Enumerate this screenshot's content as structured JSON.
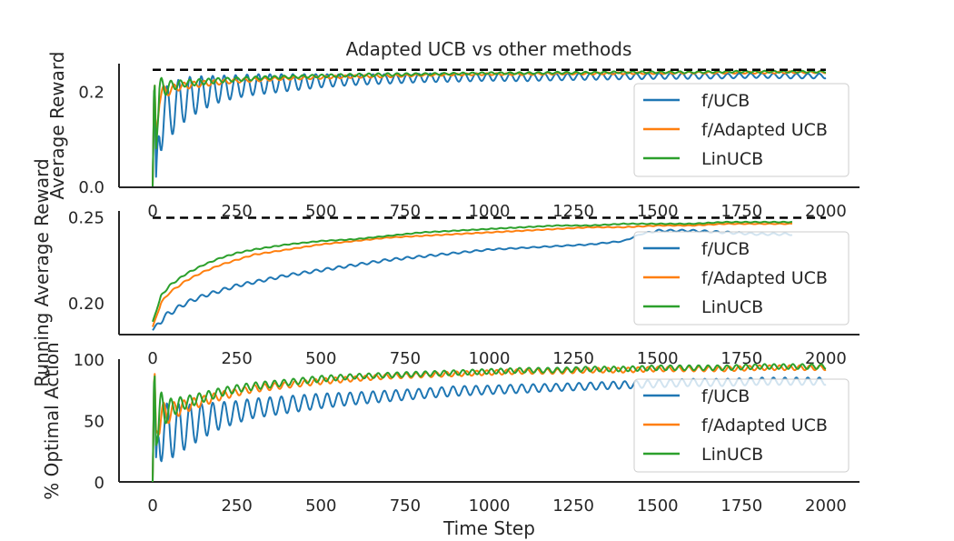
{
  "figure_title": "Adapted UCB vs other methods",
  "colors": {
    "f_ucb": "#1f77b4",
    "f_adapted_ucb": "#ff7f0e",
    "linucb": "#2ca02c",
    "reference_line": "#000000",
    "axis": "#262626",
    "legend_border": "#cccccc"
  },
  "chart_data": [
    {
      "type": "line",
      "title": "Adapted UCB vs other methods",
      "ylabel": "Average Reward",
      "xlabel": "",
      "xlim": [
        -100,
        2100
      ],
      "ylim": [
        -0.002,
        0.258
      ],
      "grid": false,
      "legend_position": "right",
      "x_ticks": [
        0,
        250,
        500,
        750,
        1000,
        1250,
        1500,
        1750,
        2000
      ],
      "x_tick_labels": [
        "0",
        "250",
        "500",
        "750",
        "1000",
        "1250",
        "1500",
        "1750",
        "2000"
      ],
      "y_ticks": [
        0.0,
        0.2
      ],
      "y_tick_labels": [
        "0.0",
        "0.2"
      ],
      "reference_line": {
        "value": 0.245,
        "style": "dashed",
        "x_range": [
          0,
          2000
        ]
      },
      "series": [
        {
          "name": "f/UCB",
          "color_key": "f_ucb",
          "x": [
            0,
            5,
            10,
            20,
            40,
            60,
            80,
            100,
            150,
            200,
            250,
            300,
            400,
            500,
            600,
            700,
            800,
            900,
            1000,
            1100,
            1200,
            1300,
            1400,
            1500,
            1600,
            1700,
            1800,
            1900,
            2000
          ],
          "y": [
            0.0,
            0.25,
            0.02,
            0.14,
            0.15,
            0.165,
            0.175,
            0.185,
            0.197,
            0.205,
            0.21,
            0.214,
            0.218,
            0.222,
            0.224,
            0.226,
            0.228,
            0.229,
            0.23,
            0.229,
            0.23,
            0.231,
            0.231,
            0.232,
            0.232,
            0.232,
            0.233,
            0.232,
            0.232
          ],
          "oscillation_amplitude": [
            0,
            0,
            0,
            0.07,
            0.06,
            0.055,
            0.05,
            0.045,
            0.035,
            0.028,
            0.024,
            0.022,
            0.018,
            0.014,
            0.011,
            0.01,
            0.009,
            0.009,
            0.008,
            0.008,
            0.007,
            0.007,
            0.006,
            0.006,
            0.006,
            0.005,
            0.005,
            0.005,
            0.005
          ],
          "oscillation_period": 34
        },
        {
          "name": "f/Adapted UCB",
          "color_key": "f_adapted_ucb",
          "x": [
            0,
            5,
            10,
            20,
            40,
            60,
            80,
            100,
            150,
            200,
            250,
            300,
            400,
            500,
            600,
            700,
            800,
            900,
            1000,
            1100,
            1200,
            1300,
            1400,
            1500,
            1600,
            1700,
            1800,
            1900,
            2000
          ],
          "y": [
            0.0,
            0.24,
            0.1,
            0.19,
            0.2,
            0.205,
            0.21,
            0.212,
            0.216,
            0.219,
            0.222,
            0.224,
            0.227,
            0.229,
            0.231,
            0.232,
            0.234,
            0.235,
            0.236,
            0.236,
            0.237,
            0.237,
            0.238,
            0.238,
            0.239,
            0.239,
            0.239,
            0.24,
            0.24
          ],
          "oscillation_amplitude": [
            0,
            0,
            0,
            0.02,
            0.012,
            0.009,
            0.008,
            0.007,
            0.006,
            0.005,
            0.004,
            0.004,
            0.003,
            0.003,
            0.003,
            0.003,
            0.002,
            0.002,
            0.002,
            0.002,
            0.002,
            0.002,
            0.002,
            0.002,
            0.002,
            0.002,
            0.002,
            0.002,
            0.002
          ],
          "oscillation_period": 30
        },
        {
          "name": "LinUCB",
          "color_key": "linucb",
          "x": [
            0,
            5,
            10,
            20,
            40,
            60,
            80,
            100,
            150,
            200,
            250,
            300,
            400,
            500,
            600,
            700,
            800,
            900,
            1000,
            1100,
            1200,
            1300,
            1400,
            1500,
            1600,
            1700,
            1800,
            1900,
            2000
          ],
          "y": [
            0.0,
            0.245,
            0.08,
            0.2,
            0.208,
            0.212,
            0.215,
            0.217,
            0.22,
            0.223,
            0.225,
            0.227,
            0.23,
            0.232,
            0.234,
            0.235,
            0.236,
            0.237,
            0.238,
            0.238,
            0.239,
            0.239,
            0.24,
            0.24,
            0.24,
            0.241,
            0.241,
            0.241,
            0.241
          ],
          "oscillation_amplitude": [
            0,
            0,
            0,
            0.03,
            0.015,
            0.01,
            0.008,
            0.007,
            0.006,
            0.005,
            0.004,
            0.004,
            0.003,
            0.003,
            0.003,
            0.003,
            0.002,
            0.002,
            0.002,
            0.002,
            0.002,
            0.002,
            0.002,
            0.002,
            0.002,
            0.002,
            0.002,
            0.002,
            0.002
          ],
          "oscillation_period": 28
        }
      ]
    },
    {
      "type": "line",
      "title": "",
      "ylabel": "Running Average Reward",
      "xlabel": "",
      "xlim": [
        -100,
        2100
      ],
      "ylim": [
        0.1815,
        0.2535
      ],
      "grid": false,
      "legend_position": "right",
      "x_ticks": [
        0,
        250,
        500,
        750,
        1000,
        1250,
        1500,
        1750,
        2000
      ],
      "x_tick_labels": [
        "0",
        "250",
        "500",
        "750",
        "1000",
        "1250",
        "1500",
        "1750",
        "2000"
      ],
      "y_ticks": [
        0.2,
        0.25
      ],
      "y_tick_labels": [
        "0.20",
        "0.25"
      ],
      "reference_line": {
        "value": 0.2495,
        "style": "dashed",
        "x_range": [
          0,
          2000
        ]
      },
      "series": [
        {
          "name": "f/UCB",
          "color_key": "f_ucb",
          "x": [
            0,
            25,
            50,
            100,
            150,
            200,
            250,
            300,
            400,
            500,
            600,
            700,
            800,
            900,
            1000,
            1100,
            1200,
            1300,
            1400,
            1450,
            1500,
            1600,
            1700,
            1800,
            1900
          ],
          "y": [
            0.184,
            0.19,
            0.194,
            0.2,
            0.204,
            0.207,
            0.21,
            0.212,
            0.216,
            0.219,
            0.222,
            0.225,
            0.227,
            0.229,
            0.231,
            0.232,
            0.233,
            0.234,
            0.236,
            0.24,
            0.242,
            0.242,
            0.241,
            0.24,
            0.24
          ],
          "oscillation_amplitude": [
            0,
            0.002,
            0.0015,
            0.0012,
            0.001,
            0.001,
            0.0009,
            0.0009,
            0.0008,
            0.0008,
            0.0007,
            0.0007,
            0.0006,
            0.0005,
            0.0004,
            0.0003,
            0.0003,
            0.0003,
            0.0003,
            0.0003,
            0.0006,
            0.0006,
            0.0006,
            0.0006,
            0.0006
          ],
          "oscillation_period": 34
        },
        {
          "name": "f/Adapted UCB",
          "color_key": "f_adapted_ucb",
          "x": [
            0,
            25,
            50,
            100,
            150,
            200,
            250,
            300,
            400,
            500,
            600,
            700,
            800,
            900,
            1000,
            1100,
            1200,
            1300,
            1400,
            1500,
            1600,
            1700,
            1800,
            1900
          ],
          "y": [
            0.186,
            0.2,
            0.206,
            0.213,
            0.218,
            0.222,
            0.225,
            0.228,
            0.231,
            0.234,
            0.236,
            0.238,
            0.239,
            0.24,
            0.241,
            0.242,
            0.243,
            0.244,
            0.244,
            0.245,
            0.245,
            0.246,
            0.246,
            0.246
          ],
          "oscillation_amplitude": [
            0,
            0.0006,
            0.0005,
            0.0004,
            0.0003,
            0.0003,
            0.0003,
            0.0003,
            0.0002,
            0.0002,
            0.0002,
            0.0002,
            0.0002,
            0.0002,
            0.0002,
            0.0002,
            0.0002,
            0.0002,
            0.0002,
            0.0002,
            0.0002,
            0.0002,
            0.0002,
            0.0002
          ],
          "oscillation_period": 30
        },
        {
          "name": "LinUCB",
          "color_key": "linucb",
          "x": [
            0,
            25,
            50,
            100,
            150,
            200,
            250,
            300,
            400,
            500,
            600,
            700,
            800,
            900,
            1000,
            1100,
            1200,
            1300,
            1400,
            1500,
            1600,
            1700,
            1800,
            1900
          ],
          "y": [
            0.189,
            0.204,
            0.21,
            0.217,
            0.222,
            0.226,
            0.229,
            0.231,
            0.234,
            0.236,
            0.237,
            0.239,
            0.241,
            0.242,
            0.243,
            0.244,
            0.245,
            0.245,
            0.246,
            0.246,
            0.246,
            0.247,
            0.247,
            0.247
          ],
          "oscillation_amplitude": [
            0,
            0.0006,
            0.0005,
            0.0004,
            0.0003,
            0.0003,
            0.0003,
            0.0003,
            0.0002,
            0.0002,
            0.0002,
            0.0002,
            0.0002,
            0.0002,
            0.0002,
            0.0002,
            0.0002,
            0.0002,
            0.0002,
            0.0002,
            0.0002,
            0.0002,
            0.0002,
            0.0002
          ],
          "oscillation_period": 28
        }
      ]
    },
    {
      "type": "line",
      "title": "",
      "ylabel": "% Optimal Action",
      "xlabel": "Time Step",
      "xlim": [
        -100,
        2100
      ],
      "ylim": [
        0,
        100
      ],
      "grid": false,
      "legend_position": "right",
      "x_ticks": [
        0,
        250,
        500,
        750,
        1000,
        1250,
        1500,
        1750,
        2000
      ],
      "x_tick_labels": [
        "0",
        "250",
        "500",
        "750",
        "1000",
        "1250",
        "1500",
        "1750",
        "2000"
      ],
      "y_ticks": [
        0,
        50,
        100
      ],
      "y_tick_labels": [
        "0",
        "50",
        "100"
      ],
      "series": [
        {
          "name": "f/UCB",
          "color_key": "f_ucb",
          "x": [
            0,
            5,
            10,
            20,
            40,
            60,
            80,
            100,
            150,
            200,
            250,
            300,
            400,
            500,
            600,
            700,
            800,
            900,
            1000,
            1100,
            1200,
            1300,
            1400,
            1500,
            1600,
            1700,
            1800,
            1900,
            2000
          ],
          "y": [
            0,
            100,
            20,
            45,
            40,
            42,
            44,
            45,
            50,
            54,
            57,
            60,
            63,
            66,
            68,
            70,
            72,
            74,
            75,
            76,
            77,
            78,
            79,
            80,
            81,
            81,
            82,
            82,
            82
          ],
          "oscillation_amplitude": [
            0,
            0,
            0,
            28,
            24,
            22,
            20,
            18,
            14,
            11,
            9,
            8,
            7,
            6,
            5,
            4.5,
            4,
            4,
            3.5,
            3.5,
            3,
            3,
            3,
            3,
            3,
            3,
            3,
            3,
            3
          ],
          "oscillation_period": 34
        },
        {
          "name": "f/Adapted UCB",
          "color_key": "f_adapted_ucb",
          "x": [
            0,
            5,
            10,
            20,
            40,
            60,
            80,
            100,
            150,
            200,
            250,
            300,
            400,
            500,
            600,
            700,
            800,
            900,
            1000,
            1100,
            1200,
            1300,
            1400,
            1500,
            1600,
            1700,
            1800,
            1900,
            2000
          ],
          "y": [
            0,
            100,
            40,
            52,
            55,
            58,
            60,
            62,
            66,
            70,
            73,
            76,
            79,
            82,
            84,
            86,
            87,
            88,
            89,
            90,
            90,
            91,
            91,
            92,
            92,
            92,
            93,
            93,
            93
          ],
          "oscillation_amplitude": [
            0,
            0,
            0,
            14,
            9,
            7,
            6,
            5,
            4,
            3.5,
            3,
            3,
            2.5,
            2.5,
            2,
            2,
            2,
            2,
            2,
            2,
            2,
            2,
            2,
            2,
            2,
            2,
            2,
            2,
            2
          ],
          "oscillation_period": 30
        },
        {
          "name": "LinUCB",
          "color_key": "linucb",
          "x": [
            0,
            5,
            10,
            20,
            40,
            60,
            80,
            100,
            150,
            200,
            250,
            300,
            400,
            500,
            600,
            700,
            800,
            900,
            1000,
            1100,
            1200,
            1300,
            1400,
            1500,
            1600,
            1700,
            1800,
            1900,
            2000
          ],
          "y": [
            0,
            100,
            30,
            55,
            58,
            61,
            63,
            65,
            69,
            73,
            76,
            78,
            81,
            84,
            86,
            87,
            88,
            89,
            90,
            91,
            91,
            92,
            92,
            93,
            93,
            93,
            94,
            94,
            94
          ],
          "oscillation_amplitude": [
            0,
            0,
            0,
            20,
            10,
            7,
            6,
            5,
            4,
            3.5,
            3,
            3,
            2.5,
            2.5,
            2,
            2,
            2,
            2,
            2,
            2,
            2,
            2,
            2,
            2,
            2,
            2,
            2,
            2,
            2
          ],
          "oscillation_period": 28
        }
      ]
    }
  ]
}
